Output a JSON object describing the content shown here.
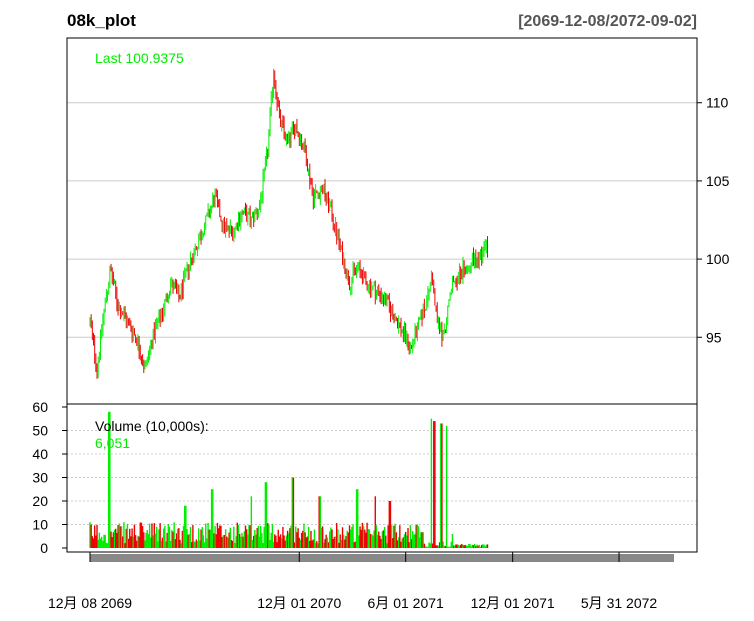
{
  "header": {
    "title": "08k_plot",
    "date_range": "[2069-12-08/2072-09-02]"
  },
  "colors": {
    "up": "#00ee00",
    "down": "#ee0000",
    "grid": "#cccccc",
    "axis": "#000000",
    "xbar": "#888888"
  },
  "chart_data": [
    {
      "type": "candlestick",
      "panel": "price",
      "legend": "Last 100.9375",
      "ylim": [
        91.5,
        113.5
      ],
      "yticks": [
        "95",
        "100",
        "105",
        "110"
      ],
      "ytick_values": [
        95,
        100,
        105,
        110
      ],
      "grid": true,
      "anchors": [
        [
          "2069-12-08",
          96.0
        ],
        [
          "2069-12-20",
          93.0
        ],
        [
          "2070-01-02",
          97.0
        ],
        [
          "2070-01-12",
          99.3
        ],
        [
          "2070-01-25",
          97.0
        ],
        [
          "2070-02-10",
          96.0
        ],
        [
          "2070-02-25",
          95.0
        ],
        [
          "2070-03-12",
          93.0
        ],
        [
          "2070-03-25",
          95.0
        ],
        [
          "2070-04-10",
          96.5
        ],
        [
          "2070-04-25",
          98.5
        ],
        [
          "2070-05-10",
          97.5
        ],
        [
          "2070-05-25",
          99.5
        ],
        [
          "2070-06-10",
          101.0
        ],
        [
          "2070-06-25",
          102.5
        ],
        [
          "2070-07-10",
          104.0
        ],
        [
          "2070-07-25",
          102.0
        ],
        [
          "2070-08-10",
          101.8
        ],
        [
          "2070-08-25",
          103.0
        ],
        [
          "2070-09-10",
          102.5
        ],
        [
          "2070-09-25",
          103.5
        ],
        [
          "2070-10-08",
          107.0
        ],
        [
          "2070-10-18",
          112.0
        ],
        [
          "2070-10-28",
          109.0
        ],
        [
          "2070-11-10",
          107.5
        ],
        [
          "2070-11-25",
          108.5
        ],
        [
          "2070-12-10",
          107.0
        ],
        [
          "2070-12-25",
          104.0
        ],
        [
          "2071-01-10",
          104.5
        ],
        [
          "2071-01-25",
          103.0
        ],
        [
          "2071-02-10",
          100.5
        ],
        [
          "2071-02-25",
          98.5
        ],
        [
          "2071-03-10",
          99.5
        ],
        [
          "2071-03-25",
          98.5
        ],
        [
          "2071-04-10",
          98.0
        ],
        [
          "2071-04-25",
          97.5
        ],
        [
          "2071-05-10",
          96.5
        ],
        [
          "2071-05-25",
          95.5
        ],
        [
          "2071-06-10",
          94.3
        ],
        [
          "2071-06-25",
          96.0
        ],
        [
          "2071-07-08",
          97.5
        ],
        [
          "2071-07-15",
          99.0
        ],
        [
          "2071-07-25",
          96.0
        ],
        [
          "2071-08-05",
          95.0
        ],
        [
          "2071-08-20",
          98.5
        ],
        [
          "2071-09-10",
          99.5
        ],
        [
          "2071-09-25",
          100.0
        ],
        [
          "2071-10-10",
          100.3
        ],
        [
          "2071-10-20",
          101.0
        ]
      ],
      "last": 100.9375
    },
    {
      "type": "bar",
      "panel": "volume",
      "legend_label": "Volume (10,000s):",
      "legend_value": "6,051",
      "ylim": [
        0,
        60
      ],
      "yticks": [
        "0",
        "10",
        "20",
        "30",
        "40",
        "50",
        "60"
      ],
      "ytick_values": [
        0,
        10,
        20,
        30,
        40,
        50,
        60
      ],
      "grid": true,
      "spikes": [
        [
          "2070-01-10",
          58
        ],
        [
          "2070-05-20",
          18
        ],
        [
          "2070-07-05",
          25
        ],
        [
          "2070-09-10",
          22
        ],
        [
          "2070-10-05",
          28
        ],
        [
          "2070-11-20",
          30
        ],
        [
          "2071-01-05",
          22
        ],
        [
          "2071-03-10",
          25
        ],
        [
          "2071-04-10",
          22
        ],
        [
          "2071-05-05",
          20
        ],
        [
          "2071-07-15",
          55
        ],
        [
          "2071-07-20",
          54
        ],
        [
          "2071-08-01",
          53
        ],
        [
          "2071-08-10",
          52
        ]
      ]
    }
  ],
  "xaxis": {
    "labels": [
      "12月 08 2069",
      "12月 01 2070",
      "6月 01 2071",
      "12月 01 2071",
      "5月 31 2072"
    ],
    "label_dates": [
      "2069-12-08",
      "2070-12-01",
      "2071-06-01",
      "2071-12-01",
      "2072-05-31"
    ],
    "start": "2069-12-08",
    "end": "2072-09-02"
  }
}
